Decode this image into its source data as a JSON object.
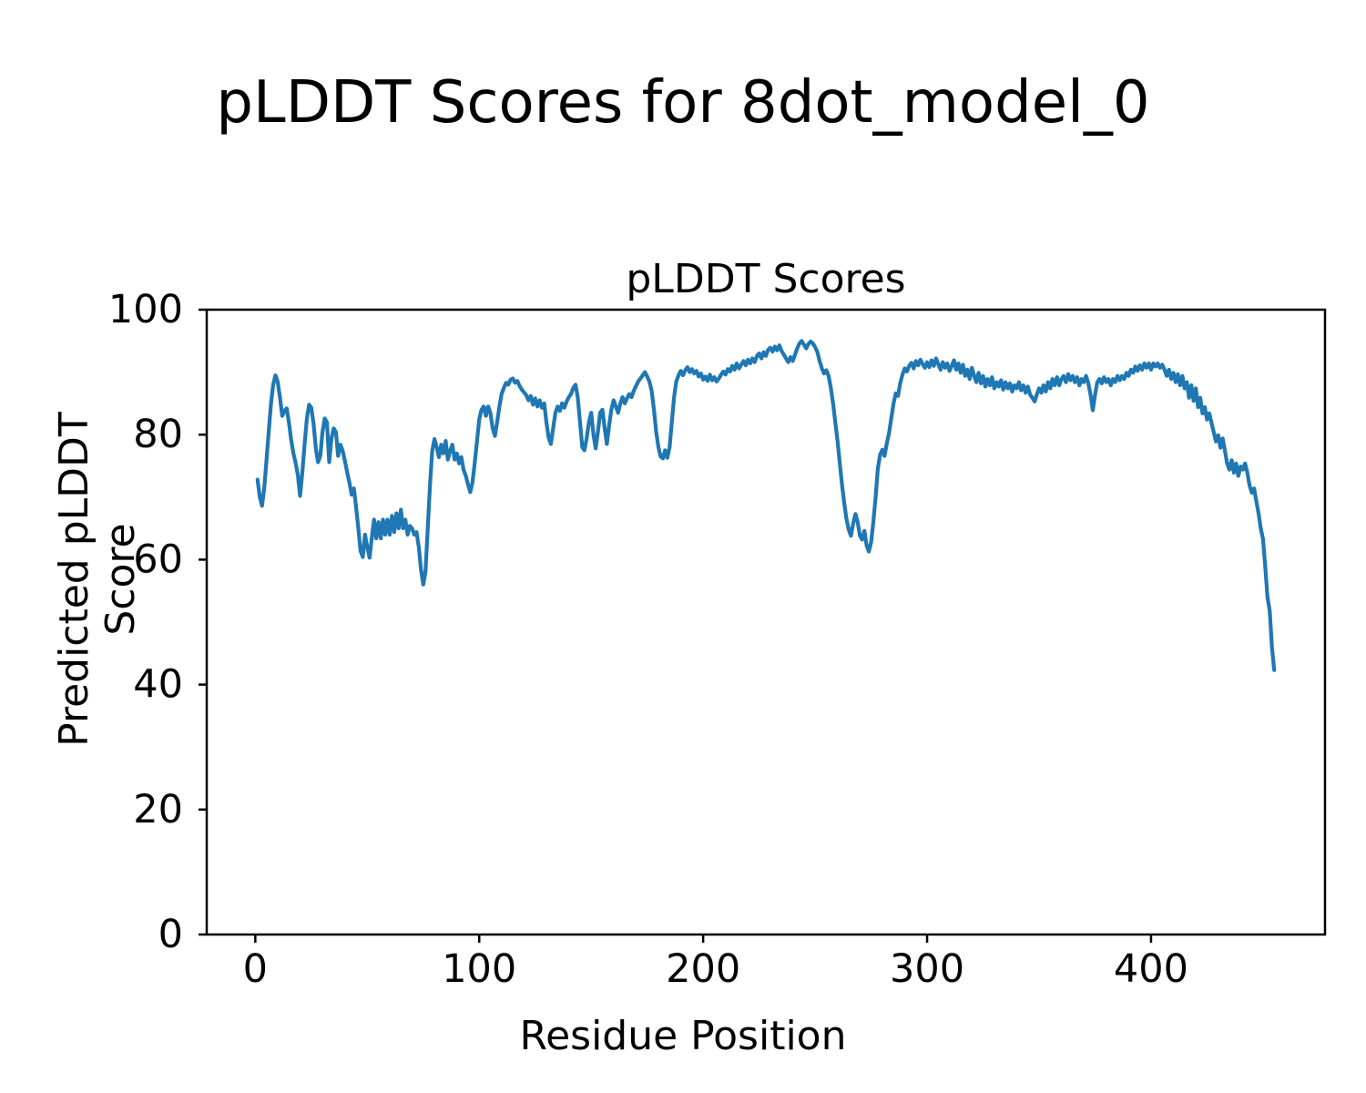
{
  "figure": {
    "suptitle": "pLDDT Scores for 8dot_model_0",
    "background": "#ffffff"
  },
  "chart_data": {
    "type": "line",
    "title": "pLDDT Scores",
    "xlabel": "Residue Position",
    "ylabel": "Predicted pLDDT Score",
    "xlim": [
      -21.7,
      477.7
    ],
    "ylim": [
      0,
      100
    ],
    "xticks": [
      0,
      100,
      200,
      300,
      400
    ],
    "yticks": [
      0,
      20,
      40,
      60,
      80,
      100
    ],
    "grid": false,
    "legend": null,
    "line_color": "#1f77b4",
    "line_width": 4.2,
    "series": [
      {
        "name": "pLDDT",
        "x_start": 1,
        "x_step": 1,
        "values": [
          72.8,
          70.0,
          68.6,
          71.5,
          76.0,
          80.5,
          85.0,
          88.0,
          89.5,
          88.5,
          86.0,
          83.0,
          83.8,
          84.2,
          82.0,
          79.2,
          77.0,
          75.5,
          73.5,
          70.2,
          74.0,
          78.5,
          82.5,
          84.8,
          84.3,
          81.8,
          77.8,
          75.6,
          76.6,
          80.4,
          82.6,
          82.0,
          75.6,
          79.4,
          81.0,
          80.4,
          76.6,
          78.4,
          77.4,
          75.8,
          74.0,
          72.4,
          70.4,
          71.4,
          68.4,
          65.0,
          61.4,
          60.4,
          64.0,
          62.0,
          60.3,
          63.4,
          66.4,
          63.4,
          66.0,
          63.4,
          66.4,
          64.0,
          66.4,
          64.0,
          67.0,
          64.4,
          67.4,
          65.0,
          68.0,
          65.0,
          66.4,
          64.0,
          65.4,
          65.0,
          64.0,
          64.4,
          62.0,
          58.4,
          56.0,
          58.0,
          65.0,
          72.0,
          77.4,
          79.3,
          78.0,
          76.4,
          78.4,
          77.0,
          79.0,
          76.0,
          77.4,
          78.4,
          76.0,
          77.0,
          75.4,
          76.4,
          74.4,
          73.4,
          72.0,
          70.8,
          72.4,
          75.5,
          79.0,
          82.5,
          84.0,
          84.5,
          83.0,
          84.5,
          83.5,
          81.0,
          79.8,
          82.0,
          84.5,
          86.5,
          87.5,
          88.3,
          88.0,
          88.8,
          89.0,
          88.3,
          88.6,
          87.8,
          87.2,
          86.8,
          86.3,
          85.5,
          86.2,
          84.8,
          85.8,
          84.5,
          85.5,
          84.3,
          85.0,
          82.0,
          79.5,
          78.5,
          81.0,
          83.5,
          84.5,
          83.8,
          85.0,
          84.3,
          85.3,
          86.0,
          86.5,
          87.5,
          88.0,
          86.0,
          82.0,
          78.0,
          77.5,
          79.5,
          82.0,
          83.5,
          80.0,
          77.8,
          80.5,
          83.5,
          84.0,
          81.0,
          78.5,
          81.5,
          84.0,
          85.5,
          84.5,
          83.5,
          85.0,
          86.0,
          85.0,
          85.8,
          86.5,
          86.0,
          87.0,
          87.8,
          88.5,
          89.0,
          89.5,
          90.0,
          89.3,
          88.5,
          87.0,
          84.0,
          80.5,
          78.0,
          76.5,
          76.2,
          77.5,
          76.3,
          78.0,
          82.0,
          86.0,
          88.5,
          89.5,
          90.2,
          89.5,
          90.3,
          90.8,
          90.0,
          90.5,
          89.8,
          90.2,
          89.3,
          89.8,
          88.8,
          89.3,
          88.6,
          89.6,
          88.7,
          89.2,
          88.5,
          89.0,
          89.6,
          90.1,
          89.6,
          90.5,
          90.1,
          91.0,
          90.4,
          91.4,
          90.6,
          91.2,
          91.8,
          91.1,
          92.0,
          91.4,
          92.2,
          91.6,
          92.6,
          93.0,
          92.2,
          93.2,
          92.6,
          93.6,
          93.9,
          93.3,
          94.1,
          93.5,
          94.3,
          93.4,
          92.8,
          92.2,
          91.6,
          92.4,
          91.8,
          92.8,
          93.8,
          94.6,
          95.0,
          94.4,
          93.8,
          94.5,
          94.9,
          94.6,
          94.0,
          93.2,
          91.8,
          90.6,
          89.8,
          90.3,
          89.4,
          87.5,
          85.0,
          82.0,
          79.0,
          75.5,
          72.0,
          69.0,
          66.5,
          64.8,
          63.8,
          65.8,
          67.3,
          66.0,
          63.8,
          63.2,
          64.6,
          62.2,
          61.3,
          62.8,
          66.0,
          70.0,
          74.5,
          76.8,
          77.6,
          76.6,
          78.6,
          80.2,
          82.6,
          85.0,
          86.6,
          86.2,
          88.2,
          89.6,
          90.6,
          90.1,
          91.0,
          91.5,
          90.6,
          91.8,
          91.1,
          92.0,
          91.3,
          90.7,
          91.6,
          90.8,
          91.9,
          91.0,
          92.2,
          91.3,
          90.4,
          91.6,
          90.7,
          91.4,
          90.2,
          91.0,
          91.9,
          90.4,
          91.4,
          89.9,
          91.2,
          89.4,
          90.4,
          88.9,
          90.7,
          89.4,
          88.4,
          89.9,
          88.2,
          89.4,
          87.7,
          88.9,
          87.9,
          89.2,
          87.4,
          88.4,
          87.7,
          88.7,
          87.2,
          88.4,
          87.4,
          88.2,
          86.9,
          87.9,
          87.4,
          88.4,
          87.1,
          87.9,
          86.7,
          87.7,
          86.4,
          85.9,
          85.3,
          86.4,
          87.4,
          86.7,
          87.9,
          86.9,
          88.4,
          87.4,
          88.9,
          87.9,
          89.2,
          87.9,
          88.9,
          89.4,
          88.4,
          89.7,
          88.7,
          89.4,
          88.4,
          89.2,
          87.9,
          88.9,
          88.4,
          89.4,
          88.2,
          86.4,
          83.9,
          86.4,
          88.4,
          88.9,
          88.2,
          89.2,
          88.4,
          88.9,
          87.9,
          88.9,
          88.4,
          89.4,
          88.7,
          89.4,
          88.9,
          89.9,
          89.4,
          90.4,
          89.9,
          90.9,
          90.2,
          91.1,
          90.4,
          91.4,
          90.7,
          91.4,
          90.4,
          91.4,
          90.9,
          91.4,
          90.7,
          91.2,
          90.4,
          89.4,
          90.4,
          88.9,
          89.9,
          88.4,
          89.7,
          87.9,
          89.4,
          87.4,
          88.4,
          85.9,
          87.9,
          85.4,
          87.4,
          84.4,
          85.9,
          83.4,
          84.4,
          82.4,
          83.4,
          81.9,
          80.4,
          78.9,
          79.9,
          77.9,
          79.4,
          77.4,
          75.4,
          74.4,
          75.9,
          73.9,
          75.4,
          73.4,
          74.9,
          74.4,
          75.4,
          73.9,
          71.9,
          70.7,
          71.4,
          69.4,
          67.4,
          65.0,
          63.3,
          59.0,
          54.0,
          51.8,
          46.0,
          42.3
        ]
      }
    ]
  }
}
